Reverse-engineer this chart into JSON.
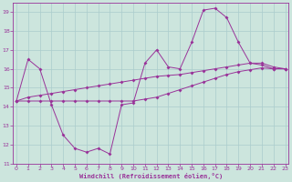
{
  "xlabel": "Windchill (Refroidissement éolien,°C)",
  "background_color": "#cce5dd",
  "grid_color": "#aacccc",
  "line_color": "#993399",
  "x_hours": [
    0,
    1,
    2,
    3,
    4,
    5,
    6,
    7,
    8,
    9,
    10,
    11,
    12,
    13,
    14,
    15,
    16,
    17,
    18,
    19,
    20,
    21,
    22,
    23
  ],
  "line1_y": [
    14.3,
    16.5,
    16.0,
    14.1,
    12.5,
    11.8,
    11.6,
    11.8,
    11.5,
    14.1,
    14.2,
    16.3,
    17.0,
    16.1,
    16.0,
    17.4,
    19.1,
    19.2,
    18.7,
    17.4,
    16.3,
    16.2,
    16.0,
    16.0
  ],
  "line2_y": [
    14.3,
    14.5,
    14.6,
    14.7,
    14.8,
    14.9,
    15.0,
    15.1,
    15.2,
    15.3,
    15.4,
    15.5,
    15.6,
    15.65,
    15.7,
    15.8,
    15.9,
    16.0,
    16.1,
    16.2,
    16.3,
    16.3,
    16.1,
    16.0
  ],
  "line3_y": [
    14.3,
    14.3,
    14.3,
    14.3,
    14.3,
    14.3,
    14.3,
    14.3,
    14.3,
    14.3,
    14.3,
    14.4,
    14.5,
    14.7,
    14.9,
    15.1,
    15.3,
    15.5,
    15.7,
    15.85,
    15.95,
    16.05,
    16.0,
    16.0
  ],
  "ylim": [
    11,
    19.5
  ],
  "yticks": [
    11,
    12,
    13,
    14,
    15,
    16,
    17,
    18,
    19
  ],
  "xlim": [
    -0.3,
    23.3
  ],
  "xticks": [
    0,
    1,
    2,
    3,
    4,
    5,
    6,
    7,
    8,
    9,
    10,
    11,
    12,
    13,
    14,
    15,
    16,
    17,
    18,
    19,
    20,
    21,
    22,
    23
  ]
}
